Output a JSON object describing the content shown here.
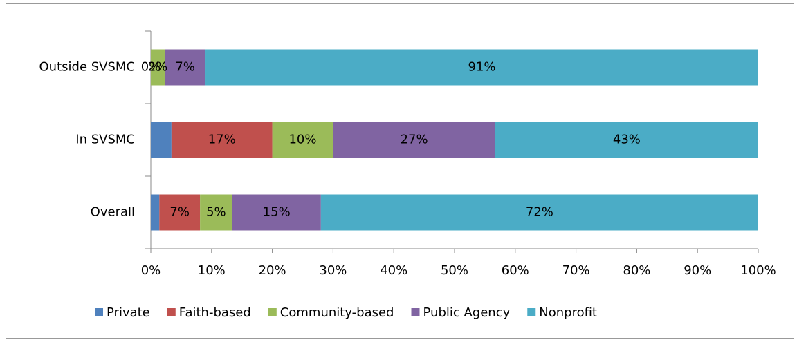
{
  "chart_data": {
    "type": "stacked_bar_horizontal",
    "categories": [
      "Outside SVSMC",
      "In SVSMC",
      "Overall"
    ],
    "series": [
      {
        "name": "Private",
        "color": "#4f81bd",
        "values": [
          0,
          3.4,
          1.4
        ],
        "value_labels": [
          "0%",
          null,
          null
        ]
      },
      {
        "name": "Faith-based",
        "color": "#c0504d",
        "values": [
          0,
          16.6,
          6.7
        ],
        "value_labels": [
          null,
          "17%",
          "7%"
        ]
      },
      {
        "name": "Community-based",
        "color": "#9bbb59",
        "values": [
          2.3,
          10,
          5.3
        ],
        "value_labels": [
          "2%",
          "10%",
          "5%"
        ]
      },
      {
        "name": "Public Agency",
        "color": "#8064a2",
        "values": [
          6.7,
          26.7,
          14.6
        ],
        "value_labels": [
          "7%",
          "27%",
          "15%"
        ]
      },
      {
        "name": "Nonprofit",
        "color": "#4bacc6",
        "values": [
          91,
          43.3,
          72
        ],
        "value_labels": [
          "91%",
          "43%",
          "72%"
        ]
      }
    ],
    "xlim": [
      0,
      100
    ],
    "xticks": [
      {
        "value": 0,
        "label": "0%"
      },
      {
        "value": 10,
        "label": "10%"
      },
      {
        "value": 20,
        "label": "20%"
      },
      {
        "value": 30,
        "label": "30%"
      },
      {
        "value": 40,
        "label": "40%"
      },
      {
        "value": 50,
        "label": "50%"
      },
      {
        "value": 60,
        "label": "60%"
      },
      {
        "value": 70,
        "label": "70%"
      },
      {
        "value": 80,
        "label": "80%"
      },
      {
        "value": 90,
        "label": "90%"
      },
      {
        "value": 100,
        "label": "100%"
      }
    ],
    "legend": "bottom"
  }
}
